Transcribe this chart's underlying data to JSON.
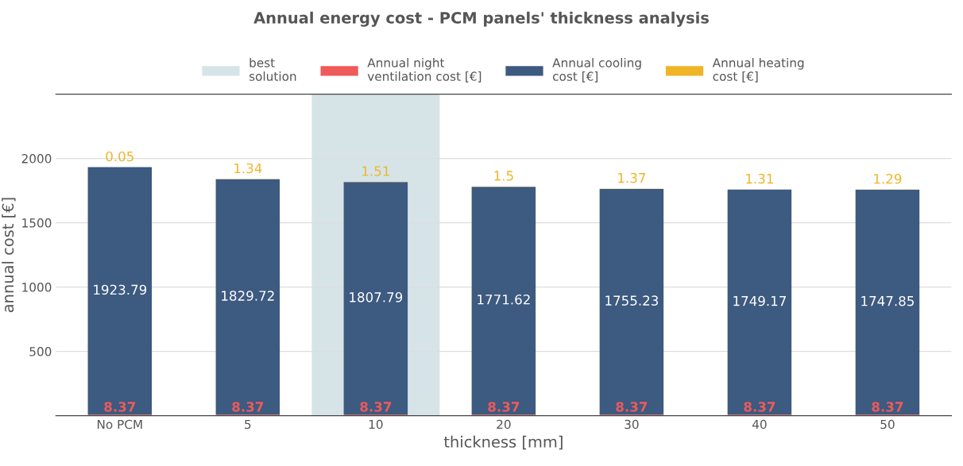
{
  "chart_data": {
    "type": "bar",
    "title": "Annual energy cost - PCM panels' thickness analysis",
    "xlabel": "thickness [mm]",
    "ylabel": "annual cost [€]",
    "categories": [
      "No PCM",
      "5",
      "10",
      "20",
      "30",
      "40",
      "50"
    ],
    "stacked": true,
    "data_labels": true,
    "series": [
      {
        "name": "Annual night ventilation cost [€]",
        "color": "#ef5a5a",
        "values": [
          8.37,
          8.37,
          8.37,
          8.37,
          8.37,
          8.37,
          8.37
        ]
      },
      {
        "name": "Annual cooling cost [€]",
        "color": "#3d5a80",
        "values": [
          1923.79,
          1829.72,
          1807.79,
          1771.62,
          1755.23,
          1749.17,
          1747.85
        ]
      },
      {
        "name": "Annual heating cost [€]",
        "color": "#f0b429",
        "values": [
          0.05,
          1.34,
          1.51,
          1.5,
          1.37,
          1.31,
          1.29
        ]
      }
    ],
    "bands": [
      {
        "axis": "x",
        "from": "10",
        "to": "10",
        "label": "best solution",
        "color": "#d6e4e8"
      }
    ],
    "ylim": [
      0,
      2500
    ],
    "yticks": [
      500,
      1000,
      1500,
      2000
    ],
    "grid": "y",
    "legend": "top"
  }
}
